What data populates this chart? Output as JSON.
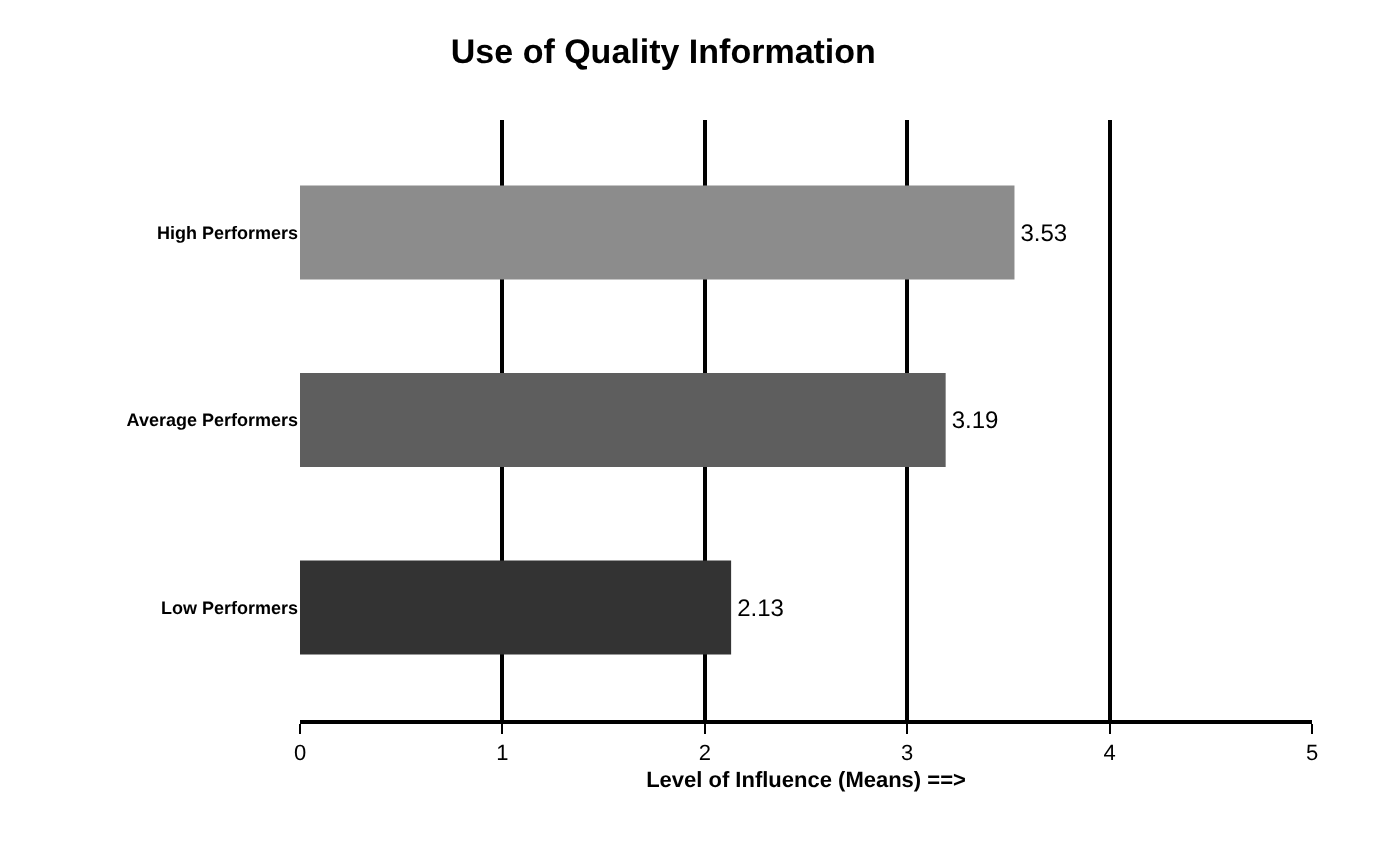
{
  "chart_data": {
    "type": "bar",
    "orientation": "horizontal",
    "title": "Use of Quality Information",
    "xlabel": "Level of Influence (Means) ==>",
    "categories": [
      "High Performers",
      "Average Performers",
      "Low Performers"
    ],
    "values": [
      3.53,
      3.19,
      2.13
    ],
    "colors": [
      "#8c8c8c",
      "#5e5e5e",
      "#333333"
    ],
    "xlim": [
      0,
      5
    ],
    "xticks": [
      0,
      1,
      2,
      3,
      4,
      5
    ],
    "grid": "x",
    "data_labels": true,
    "legend": false
  }
}
